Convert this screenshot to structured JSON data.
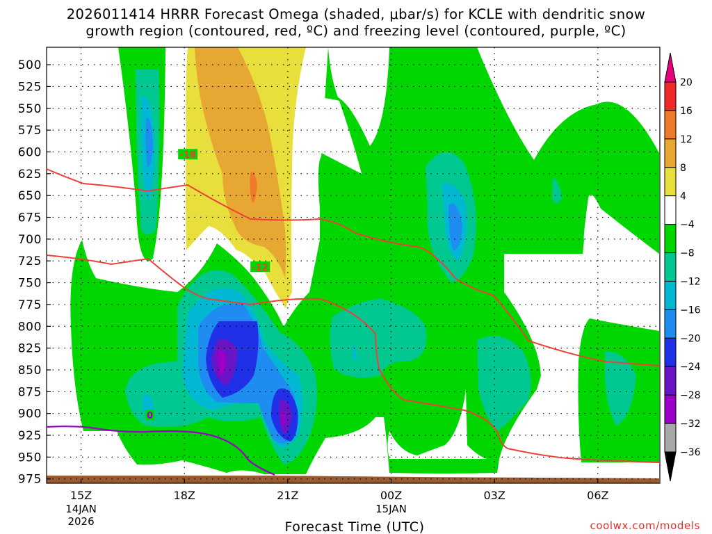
{
  "header": {
    "title_line1": "2026011414 HRRR Forecast Omega (shaded, μbar/s) for KCLE with dendritic snow",
    "title_line2": "growth region (contoured, red, ºC) and freezing level (contoured, purple, ºC)"
  },
  "watermark": "coolwx.com/models",
  "chart_data": {
    "type": "heatmap",
    "title": "2026011414 HRRR Forecast Omega (shaded, μbar/s) for KCLE with dendritic snow growth region (contoured, red, ºC) and freezing level (contoured, purple, ºC)",
    "xlabel": "Forecast Time (UTC)",
    "ylabel": "",
    "y_axis": {
      "ticks": [
        500,
        525,
        550,
        575,
        600,
        625,
        650,
        675,
        700,
        725,
        750,
        775,
        800,
        825,
        850,
        875,
        900,
        925,
        950,
        975
      ],
      "range": [
        480,
        980
      ],
      "grid": true
    },
    "x_axis": {
      "ticks": [
        {
          "label": "15Z",
          "sub1": "14JAN",
          "sub2": "2026",
          "hour": 15
        },
        {
          "label": "18Z",
          "sub1": "",
          "sub2": "",
          "hour": 18
        },
        {
          "label": "21Z",
          "sub1": "",
          "sub2": "",
          "hour": 21
        },
        {
          "label": "00Z",
          "sub1": "15JAN",
          "sub2": "",
          "hour": 24
        },
        {
          "label": "03Z",
          "sub1": "",
          "sub2": "",
          "hour": 27
        },
        {
          "label": "06Z",
          "sub1": "",
          "sub2": "",
          "hour": 30
        }
      ],
      "range": [
        14.0,
        31.8
      ],
      "grid": true
    },
    "colorbar": {
      "labels": [
        "20",
        "16",
        "12",
        "8",
        "4",
        "−4",
        "−8",
        "−12",
        "−16",
        "−20",
        "−24",
        "−28",
        "−32",
        "−36"
      ],
      "colors": [
        "#e8007a",
        "#f02828",
        "#ef7a2a",
        "#e6a832",
        "#e8de3c",
        "#ffffff",
        "#00d600",
        "#00c890",
        "#00b8d2",
        "#1e8cf0",
        "#2030e6",
        "#6a14c8",
        "#9a00c6",
        "#a8a8a8",
        "#000000"
      ]
    },
    "contour_labels": [
      {
        "text": "-18",
        "hour": 18.1,
        "p": 603
      },
      {
        "text": "-12",
        "hour": 20.2,
        "p": 732
      },
      {
        "text": "0",
        "hour": 17.0,
        "p": 902
      }
    ],
    "omega_fields": [
      {
        "value": "-4 to -8",
        "color": "#00d600"
      },
      {
        "value": "-8 to -12",
        "color": "#00c890"
      },
      {
        "value": "-12 to -16",
        "color": "#00b8d2"
      },
      {
        "value": "-16 to -20",
        "color": "#1e8cf0"
      },
      {
        "value": "-20 to -24",
        "color": "#2030e6"
      },
      {
        "value": "-24 to -28",
        "color": "#6a14c8"
      },
      {
        "value": "-28 to -32",
        "color": "#9a00c6"
      },
      {
        "value": "4 to 8",
        "color": "#e8de3c"
      },
      {
        "value": "8 to 12",
        "color": "#e6a832"
      },
      {
        "value": "12 to 16",
        "color": "#ef7a2a"
      }
    ],
    "ground_color": "#9a5a30",
    "dgz_color": "#ef4038",
    "freezing_color": "#9a00c6"
  }
}
